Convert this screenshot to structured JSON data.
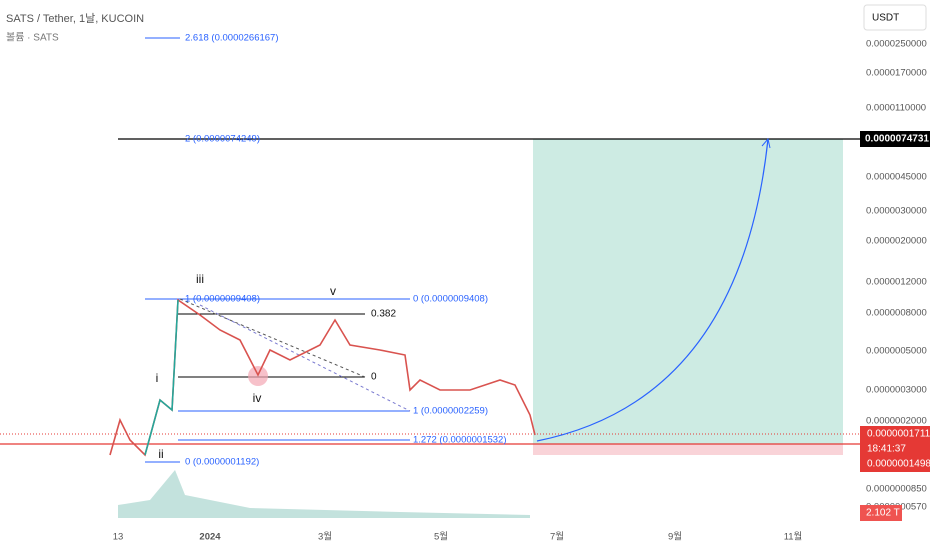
{
  "header": {
    "symbol": "SATS / Tether, 1날, KUCOIN",
    "volume": "볼륨 · SATS",
    "currency": "USDT"
  },
  "price_axis": [
    "0.0000250000",
    "0.0000170000",
    "0.0000110000",
    "0.0000045000",
    "0.0000030000",
    "0.0000020000",
    "0.0000012000",
    "0.0000008000",
    "0.0000005000",
    "0.0000003000",
    "0.0000002000",
    "0.0000000850",
    "0.0000000570"
  ],
  "badges": {
    "target": "0.0000074731",
    "last": "0.0000001711",
    "countdown": "18:41:37",
    "stop": "0.0000001498",
    "volume": "2.102 T"
  },
  "time_axis": [
    "13",
    "2024",
    "3월",
    "5월",
    "7월",
    "9월",
    "11월"
  ],
  "fib_labels": [
    "2.618 (0.0000266167)",
    "2 (0.0000074249)",
    "1 (0.0000009408)",
    "0 (0.0000009408)",
    "0.382",
    "0",
    "1 (0.0000002259)",
    "1.272 (0.0000001532)",
    "0 (0.0000001192)"
  ],
  "waves": [
    "iii",
    "v",
    "i",
    "iv",
    "ii"
  ]
}
